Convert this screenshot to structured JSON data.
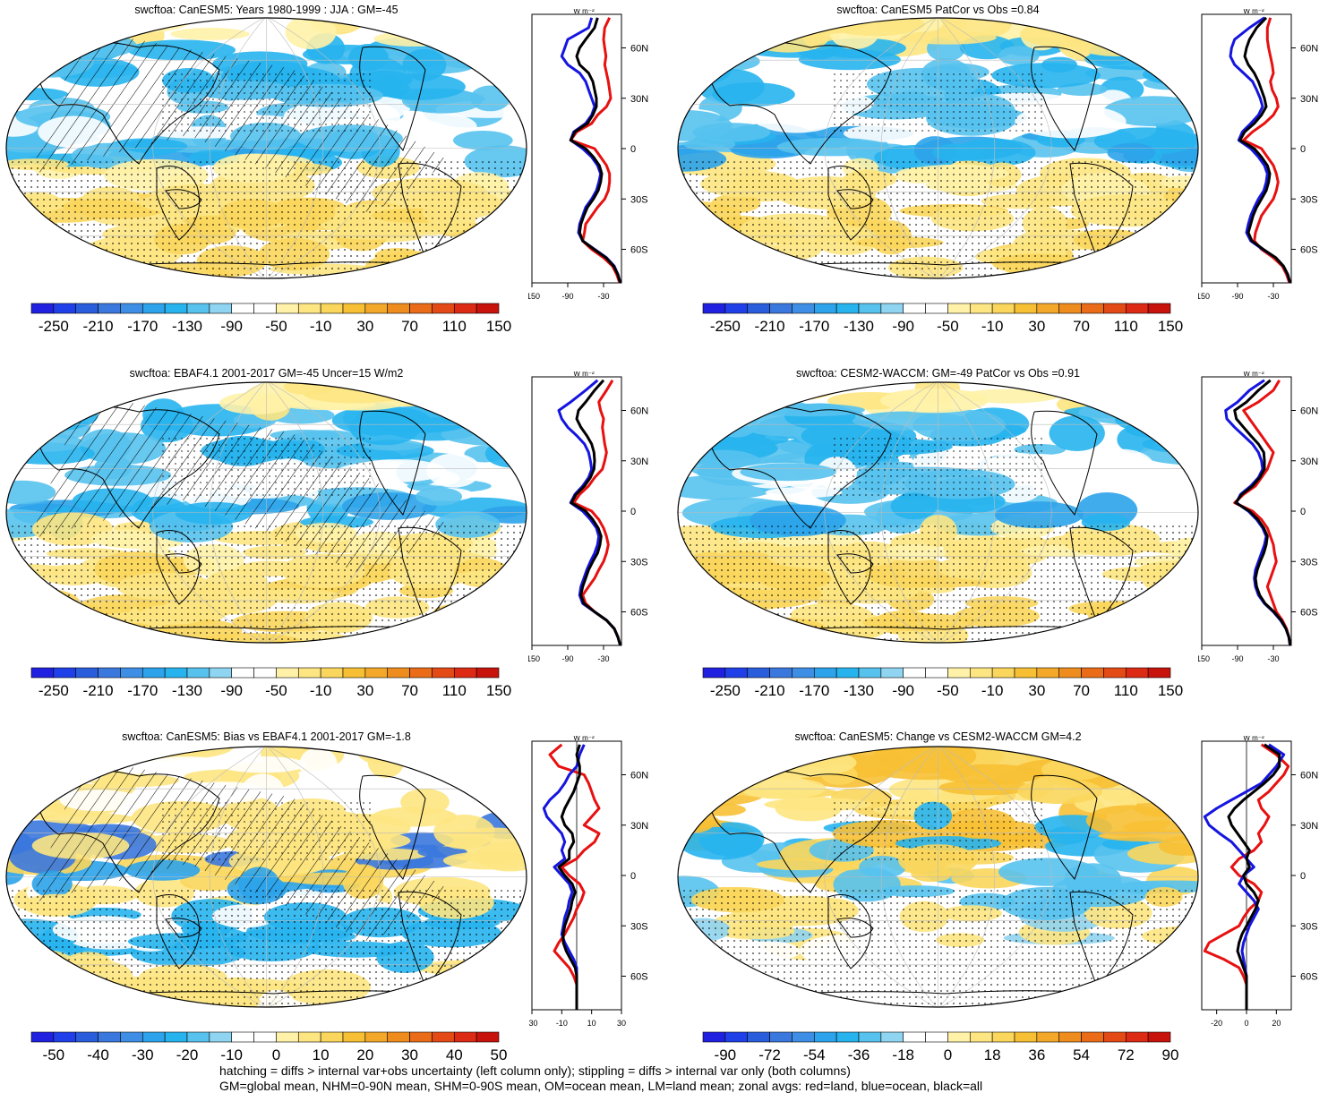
{
  "palette": {
    "standard": [
      "#2020e0",
      "#1f40e8",
      "#2a5ddc",
      "#3b78de",
      "#3f8ee6",
      "#2ca3ea",
      "#27b4ee",
      "#57c2ee",
      "#8fd4f0",
      "#ffffff",
      "#ffffff",
      "#fff2a8",
      "#fde582",
      "#fbd65c",
      "#f7c034",
      "#f4a82a",
      "#ef8c1e",
      "#ea6c18",
      "#e44a16",
      "#dc2a14",
      "#c8120c"
    ],
    "red": "#e81010",
    "blue": "#1515e0",
    "black": "#000000"
  },
  "icons": {
    "hatching": "diagonal-hatch-pattern",
    "stippling": "dot-stipple-pattern"
  },
  "footer": {
    "line1": "hatching = diffs > internal var+obs uncertainty (left column only); stippling = diffs > internal var only (both columns)",
    "line2": "GM=global mean, NHM=0-90N mean, SHM=0-90S mean, OM=ocean mean, LM=land mean; zonal avgs: red=land, blue=ocean, black=all"
  },
  "panels": [
    {
      "title": "swcftoa: CanESM5: Years 1980-1999 : JJA : GM=-45",
      "colorbar_labels": [
        "-250",
        "-210",
        "-170",
        "-130",
        "-90",
        "-50",
        "-10",
        "30",
        "70",
        "110",
        "150"
      ],
      "hatched": true
    },
    {
      "title": "swcftoa: CanESM5 PatCor vs Obs =0.84",
      "colorbar_labels": [
        "-250",
        "-210",
        "-170",
        "-130",
        "-90",
        "-50",
        "-10",
        "30",
        "70",
        "110",
        "150"
      ],
      "hatched": false
    },
    {
      "title": "swcftoa: EBAF4.1 2001-2017 GM=-45 Uncer=15 W/m2",
      "colorbar_labels": [
        "-250",
        "-210",
        "-170",
        "-130",
        "-90",
        "-50",
        "-10",
        "30",
        "70",
        "110",
        "150"
      ],
      "hatched": true
    },
    {
      "title": "swcftoa: CESM2-WACCM: GM=-49 PatCor vs Obs =0.91",
      "colorbar_labels": [
        "-250",
        "-210",
        "-170",
        "-130",
        "-90",
        "-50",
        "-10",
        "30",
        "70",
        "110",
        "150"
      ],
      "hatched": false
    },
    {
      "title": "swcftoa: CanESM5: Bias vs EBAF4.1 2001-2017 GM=-1.8",
      "colorbar_labels": [
        "-50",
        "-40",
        "-30",
        "-20",
        "-10",
        "0",
        "10",
        "20",
        "30",
        "40",
        "50"
      ],
      "hatched": true
    },
    {
      "title": "swcftoa: CanESM5: Change vs CESM2-WACCM GM=4.2",
      "colorbar_labels": [
        "-90",
        "-72",
        "-54",
        "-36",
        "-18",
        "0",
        "18",
        "36",
        "54",
        "72",
        "90"
      ],
      "hatched": false
    }
  ],
  "chart_data": [
    {
      "type": "line",
      "panel": "row1-left-zonal",
      "ylabel": "",
      "xlabel": "W m⁻²",
      "x_ticks": [
        "-150",
        "-90",
        "-30"
      ],
      "xlim": [
        -150,
        0
      ],
      "y_ticks": [
        "60N",
        "30N",
        "0",
        "30S",
        "60S"
      ],
      "ylim": [
        -80,
        80
      ],
      "lat": [
        78,
        72,
        65,
        60,
        55,
        50,
        45,
        40,
        35,
        30,
        25,
        20,
        15,
        10,
        5,
        0,
        -5,
        -10,
        -15,
        -20,
        -25,
        -30,
        -35,
        -40,
        -45,
        -50,
        -55,
        -60,
        -65,
        -70,
        -75,
        -80
      ],
      "series": [
        {
          "name": "land",
          "values": [
            -20,
            -28,
            -30,
            -28,
            -26,
            -28,
            -25,
            -22,
            -20,
            -18,
            -25,
            -40,
            -50,
            -75,
            -85,
            -45,
            -35,
            -25,
            -20,
            -20,
            -22,
            -28,
            -40,
            -50,
            -60,
            -62,
            -65,
            -50,
            -30,
            -15,
            -8,
            -3
          ]
        },
        {
          "name": "ocean",
          "values": [
            -50,
            -55,
            -90,
            -95,
            -100,
            -90,
            -70,
            -60,
            -55,
            -50,
            -45,
            -50,
            -60,
            -80,
            -85,
            -65,
            -50,
            -40,
            -35,
            -38,
            -42,
            -50,
            -60,
            -65,
            -70,
            -72,
            -65,
            -45,
            -25,
            -12,
            -6,
            -2
          ]
        },
        {
          "name": "all",
          "values": [
            -40,
            -45,
            -60,
            -70,
            -75,
            -70,
            -55,
            -48,
            -45,
            -42,
            -42,
            -48,
            -57,
            -78,
            -85,
            -60,
            -47,
            -37,
            -33,
            -35,
            -39,
            -47,
            -57,
            -63,
            -68,
            -70,
            -65,
            -46,
            -26,
            -13,
            -6,
            -2
          ]
        }
      ]
    },
    {
      "type": "line",
      "panel": "row1-right-zonal",
      "ylabel": "",
      "xlabel": "W m⁻²",
      "x_ticks": [
        "-150",
        "-90",
        "-30"
      ],
      "xlim": [
        -150,
        0
      ],
      "y_ticks": [
        "60N",
        "30N",
        "0",
        "30S",
        "60S"
      ],
      "ylim": [
        -80,
        80
      ],
      "lat": [
        78,
        72,
        65,
        60,
        55,
        50,
        45,
        40,
        35,
        30,
        25,
        20,
        15,
        10,
        5,
        0,
        -5,
        -10,
        -15,
        -20,
        -25,
        -30,
        -35,
        -40,
        -45,
        -50,
        -55,
        -60,
        -65,
        -70,
        -75,
        -80
      ],
      "series": [
        {
          "name": "land",
          "values": [
            -35,
            -40,
            -40,
            -38,
            -35,
            -32,
            -30,
            -35,
            -32,
            -25,
            -22,
            -30,
            -45,
            -65,
            -80,
            -50,
            -40,
            -30,
            -25,
            -22,
            -25,
            -30,
            -40,
            -50,
            -55,
            -60,
            -62,
            -50,
            -30,
            -15,
            -8,
            -3
          ]
        },
        {
          "name": "ocean",
          "values": [
            -45,
            -70,
            -95,
            -100,
            -102,
            -95,
            -80,
            -65,
            -58,
            -52,
            -48,
            -55,
            -68,
            -82,
            -88,
            -68,
            -55,
            -45,
            -40,
            -42,
            -46,
            -55,
            -62,
            -68,
            -72,
            -75,
            -68,
            -48,
            -26,
            -13,
            -6,
            -2
          ]
        },
        {
          "name": "all",
          "values": [
            -42,
            -58,
            -70,
            -75,
            -78,
            -72,
            -62,
            -55,
            -50,
            -45,
            -42,
            -50,
            -62,
            -78,
            -86,
            -62,
            -50,
            -40,
            -36,
            -38,
            -42,
            -50,
            -58,
            -64,
            -68,
            -72,
            -66,
            -47,
            -26,
            -13,
            -6,
            -2
          ]
        }
      ]
    },
    {
      "type": "line",
      "panel": "row2-left-zonal",
      "ylabel": "",
      "xlabel": "W m⁻²",
      "x_ticks": [
        "-150",
        "-90",
        "-30"
      ],
      "xlim": [
        -150,
        0
      ],
      "y_ticks": [
        "60N",
        "30N",
        "0",
        "30S",
        "60S"
      ],
      "ylim": [
        -80,
        80
      ],
      "lat": [
        78,
        72,
        65,
        60,
        55,
        50,
        45,
        40,
        35,
        30,
        25,
        20,
        15,
        10,
        5,
        0,
        -5,
        -10,
        -15,
        -20,
        -25,
        -30,
        -35,
        -40,
        -45,
        -50,
        -55,
        -60,
        -65,
        -70,
        -75,
        -80
      ],
      "series": [
        {
          "name": "land",
          "values": [
            -15,
            -25,
            -38,
            -35,
            -30,
            -32,
            -30,
            -28,
            -25,
            -28,
            -32,
            -45,
            -55,
            -70,
            -80,
            -50,
            -38,
            -30,
            -25,
            -22,
            -25,
            -30,
            -38,
            -45,
            -55,
            -65,
            -60,
            -45,
            -25,
            -12,
            -6,
            -2
          ]
        },
        {
          "name": "ocean",
          "values": [
            -40,
            -60,
            -85,
            -105,
            -100,
            -90,
            -75,
            -62,
            -55,
            -52,
            -50,
            -55,
            -65,
            -78,
            -85,
            -65,
            -52,
            -42,
            -38,
            -40,
            -45,
            -52,
            -58,
            -63,
            -68,
            -70,
            -65,
            -45,
            -25,
            -12,
            -6,
            -2
          ]
        },
        {
          "name": "all",
          "values": [
            -30,
            -45,
            -60,
            -72,
            -75,
            -68,
            -58,
            -50,
            -46,
            -45,
            -46,
            -52,
            -62,
            -76,
            -84,
            -60,
            -48,
            -39,
            -34,
            -36,
            -40,
            -48,
            -55,
            -60,
            -65,
            -68,
            -63,
            -45,
            -25,
            -12,
            -6,
            -2
          ]
        }
      ]
    },
    {
      "type": "line",
      "panel": "row2-right-zonal",
      "ylabel": "",
      "xlabel": "W m⁻²",
      "x_ticks": [
        "-150",
        "-90",
        "-30"
      ],
      "xlim": [
        -150,
        0
      ],
      "y_ticks": [
        "60N",
        "30N",
        "0",
        "30S",
        "60S"
      ],
      "ylim": [
        -80,
        80
      ],
      "lat": [
        78,
        72,
        65,
        60,
        55,
        50,
        45,
        40,
        35,
        30,
        25,
        20,
        15,
        10,
        5,
        0,
        -5,
        -10,
        -15,
        -20,
        -25,
        -30,
        -35,
        -40,
        -45,
        -50,
        -55,
        -60,
        -65,
        -70,
        -75,
        -80
      ],
      "series": [
        {
          "name": "land",
          "values": [
            -20,
            -30,
            -55,
            -80,
            -70,
            -60,
            -50,
            -40,
            -30,
            -35,
            -40,
            -50,
            -60,
            -80,
            -95,
            -65,
            -50,
            -40,
            -35,
            -30,
            -28,
            -25,
            -30,
            -35,
            -40,
            -35,
            -30,
            -25,
            -15,
            -8,
            -4,
            -2
          ]
        },
        {
          "name": "ocean",
          "values": [
            -45,
            -70,
            -90,
            -110,
            -108,
            -95,
            -80,
            -65,
            -55,
            -50,
            -48,
            -55,
            -68,
            -85,
            -92,
            -72,
            -58,
            -48,
            -42,
            -45,
            -50,
            -55,
            -60,
            -62,
            -60,
            -55,
            -45,
            -30,
            -18,
            -9,
            -4,
            -2
          ]
        },
        {
          "name": "all",
          "values": [
            -35,
            -55,
            -75,
            -95,
            -92,
            -80,
            -68,
            -55,
            -46,
            -45,
            -45,
            -53,
            -65,
            -83,
            -93,
            -70,
            -56,
            -46,
            -40,
            -42,
            -46,
            -52,
            -57,
            -60,
            -58,
            -53,
            -44,
            -29,
            -17,
            -9,
            -4,
            -2
          ]
        }
      ]
    },
    {
      "type": "line",
      "panel": "row3-left-zonal",
      "ylabel": "",
      "xlabel": "W m⁻²",
      "x_ticks": [
        "-30",
        "-10",
        "10",
        "30"
      ],
      "xlim": [
        -30,
        30
      ],
      "y_ticks": [
        "60N",
        "30N",
        "0",
        "30S",
        "60S"
      ],
      "ylim": [
        -80,
        80
      ],
      "lat": [
        78,
        72,
        65,
        60,
        55,
        50,
        45,
        40,
        35,
        30,
        25,
        20,
        15,
        10,
        5,
        0,
        -5,
        -10,
        -15,
        -20,
        -25,
        -30,
        -35,
        -40,
        -45,
        -50,
        -55,
        -60,
        -65,
        -70,
        -75,
        -80
      ],
      "series": [
        {
          "name": "land",
          "values": [
            -10,
            -18,
            -12,
            5,
            8,
            10,
            12,
            15,
            10,
            5,
            15,
            12,
            5,
            0,
            -10,
            -5,
            2,
            5,
            3,
            0,
            -2,
            -5,
            -8,
            -12,
            -15,
            -10,
            -5,
            -2,
            0,
            0,
            0,
            0
          ]
        },
        {
          "name": "ocean",
          "values": [
            5,
            2,
            0,
            -5,
            -8,
            -12,
            -18,
            -22,
            -20,
            -15,
            -10,
            -8,
            -10,
            -8,
            -15,
            -10,
            -5,
            -3,
            -5,
            -6,
            -8,
            -9,
            -10,
            -8,
            -5,
            -2,
            0,
            0,
            0,
            0,
            0,
            0
          ]
        },
        {
          "name": "all",
          "values": [
            2,
            0,
            2,
            2,
            0,
            -2,
            -5,
            -8,
            -10,
            -8,
            -3,
            -2,
            -5,
            -5,
            -12,
            -8,
            -3,
            -1,
            -3,
            -4,
            -6,
            -8,
            -9,
            -9,
            -7,
            -4,
            -1,
            0,
            0,
            0,
            0,
            0
          ]
        }
      ]
    },
    {
      "type": "line",
      "panel": "row3-right-zonal",
      "ylabel": "",
      "xlabel": "W m⁻²",
      "x_ticks": [
        "-20",
        "0",
        "20"
      ],
      "xlim": [
        -30,
        30
      ],
      "y_ticks": [
        "60N",
        "30N",
        "0",
        "30S",
        "60S"
      ],
      "ylim": [
        -80,
        80
      ],
      "lat": [
        78,
        72,
        65,
        60,
        55,
        50,
        45,
        40,
        35,
        30,
        25,
        20,
        15,
        10,
        5,
        0,
        -5,
        -10,
        -15,
        -20,
        -25,
        -30,
        -35,
        -40,
        -45,
        -50,
        -55,
        -60,
        -65,
        -70,
        -75,
        -80
      ],
      "series": [
        {
          "name": "land",
          "values": [
            10,
            20,
            28,
            25,
            20,
            15,
            8,
            10,
            15,
            12,
            8,
            10,
            5,
            -5,
            -10,
            -5,
            5,
            10,
            8,
            2,
            -2,
            -5,
            -15,
            -25,
            -28,
            -15,
            -5,
            -2,
            0,
            0,
            0,
            0
          ]
        },
        {
          "name": "ocean",
          "values": [
            15,
            25,
            20,
            15,
            10,
            0,
            -10,
            -20,
            -28,
            -25,
            -18,
            -10,
            -5,
            0,
            5,
            -2,
            -5,
            0,
            5,
            8,
            5,
            2,
            0,
            -2,
            -3,
            -2,
            -1,
            0,
            0,
            0,
            0,
            0
          ]
        },
        {
          "name": "all",
          "values": [
            12,
            22,
            22,
            18,
            12,
            5,
            -2,
            -8,
            -12,
            -10,
            -6,
            -2,
            2,
            0,
            2,
            -2,
            0,
            5,
            8,
            6,
            3,
            0,
            -3,
            -5,
            -6,
            -4,
            -2,
            0,
            0,
            0,
            0,
            0
          ]
        }
      ]
    }
  ]
}
